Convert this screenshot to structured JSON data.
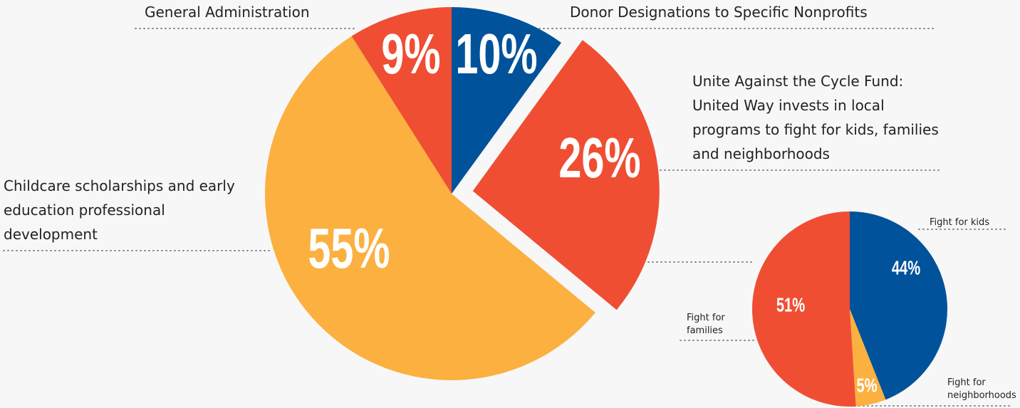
{
  "chart_data": [
    {
      "type": "pie",
      "categories": [
        "Donor Designations to Specific Nonprofits",
        "Unite Against the Cycle Fund: United Way invests in local programs to fight for kids, families and neighborhoods",
        "Childcare scholarships and early education professional development",
        "General Administration"
      ],
      "values": [
        10,
        26,
        55,
        9
      ],
      "value_labels": [
        "10%",
        "26%",
        "55%",
        "9%"
      ],
      "colors": [
        "#00529b",
        "#ef4e33",
        "#fbb040",
        "#ef4e33"
      ],
      "exploded": [
        false,
        true,
        false,
        false
      ]
    },
    {
      "type": "pie",
      "categories": [
        "Fight for kids",
        "Fight for neighborhoods",
        "Fight for families"
      ],
      "values": [
        44,
        5,
        51
      ],
      "value_labels": [
        "44%",
        "5%",
        "51%"
      ],
      "colors": [
        "#00529b",
        "#fbb040",
        "#ef4e33"
      ],
      "exploded": [
        false,
        false,
        false
      ]
    }
  ]
}
